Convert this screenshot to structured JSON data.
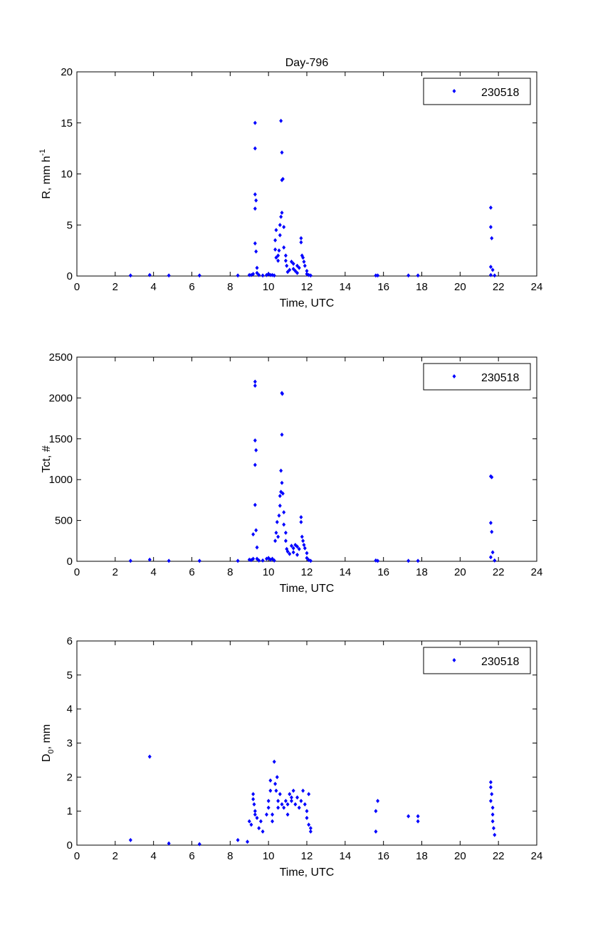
{
  "chart_data": [
    {
      "type": "scatter",
      "title": "Day-796",
      "xlabel": "Time, UTC",
      "ylabel": "R, mm h",
      "ylabel_sup": "-1",
      "xlim": [
        0,
        24
      ],
      "ylim": [
        0,
        20
      ],
      "xticks": [
        0,
        2,
        4,
        6,
        8,
        10,
        12,
        14,
        16,
        18,
        20,
        22,
        24
      ],
      "yticks": [
        0,
        5,
        10,
        15,
        20
      ],
      "legend": "230518",
      "legend_position": "top-right",
      "color": "#0000ff",
      "points": [
        [
          2.8,
          0.05
        ],
        [
          3.8,
          0.1
        ],
        [
          4.8,
          0.05
        ],
        [
          6.4,
          0.05
        ],
        [
          8.4,
          0.05
        ],
        [
          9.0,
          0.1
        ],
        [
          9.1,
          0.1
        ],
        [
          9.2,
          0.2
        ],
        [
          9.3,
          15
        ],
        [
          9.3,
          12.5
        ],
        [
          9.3,
          8
        ],
        [
          9.35,
          7.4
        ],
        [
          9.3,
          6.6
        ],
        [
          9.3,
          3.2
        ],
        [
          9.35,
          2.4
        ],
        [
          9.4,
          0.8
        ],
        [
          9.4,
          0.3
        ],
        [
          9.5,
          0.1
        ],
        [
          9.7,
          0.05
        ],
        [
          9.9,
          0.1
        ],
        [
          10.0,
          0.2
        ],
        [
          10.1,
          0.1
        ],
        [
          10.2,
          0.1
        ],
        [
          10.3,
          0.05
        ],
        [
          10.35,
          2.6
        ],
        [
          10.35,
          3.5
        ],
        [
          10.4,
          4.5
        ],
        [
          10.4,
          1.8
        ],
        [
          10.5,
          2.0
        ],
        [
          10.5,
          1.5
        ],
        [
          10.55,
          2.5
        ],
        [
          10.6,
          4.0
        ],
        [
          10.6,
          5.0
        ],
        [
          10.65,
          5.8
        ],
        [
          10.7,
          6.2
        ],
        [
          10.65,
          15.2
        ],
        [
          10.7,
          12.1
        ],
        [
          10.7,
          9.4
        ],
        [
          10.75,
          9.5
        ],
        [
          10.8,
          4.8
        ],
        [
          10.8,
          2.8
        ],
        [
          10.9,
          2.0
        ],
        [
          10.9,
          1.5
        ],
        [
          10.95,
          1.0
        ],
        [
          11.0,
          0.4
        ],
        [
          11.1,
          0.6
        ],
        [
          11.2,
          1.4
        ],
        [
          11.3,
          1.2
        ],
        [
          11.3,
          0.7
        ],
        [
          11.4,
          0.5
        ],
        [
          11.5,
          1.0
        ],
        [
          11.5,
          0.3
        ],
        [
          11.6,
          0.8
        ],
        [
          11.7,
          3.7
        ],
        [
          11.7,
          3.3
        ],
        [
          11.75,
          2.0
        ],
        [
          11.8,
          1.8
        ],
        [
          11.85,
          1.4
        ],
        [
          11.9,
          1.0
        ],
        [
          12.0,
          0.5
        ],
        [
          12.0,
          0.2
        ],
        [
          12.1,
          0.1
        ],
        [
          12.2,
          0.05
        ],
        [
          15.6,
          0.05
        ],
        [
          15.7,
          0.05
        ],
        [
          17.3,
          0.05
        ],
        [
          17.8,
          0.05
        ],
        [
          21.6,
          6.7
        ],
        [
          21.6,
          4.8
        ],
        [
          21.65,
          3.7
        ],
        [
          21.6,
          0.9
        ],
        [
          21.7,
          0.6
        ],
        [
          21.6,
          0.1
        ],
        [
          21.8,
          0.05
        ]
      ]
    },
    {
      "type": "scatter",
      "title": "",
      "xlabel": "Time, UTC",
      "ylabel": "Tct, #",
      "xlim": [
        0,
        24
      ],
      "ylim": [
        0,
        2500
      ],
      "xticks": [
        0,
        2,
        4,
        6,
        8,
        10,
        12,
        14,
        16,
        18,
        20,
        22,
        24
      ],
      "yticks": [
        0,
        500,
        1000,
        1500,
        2000,
        2500
      ],
      "legend": "230518",
      "legend_position": "top-right",
      "color": "#0000ff",
      "points": [
        [
          2.8,
          5
        ],
        [
          3.8,
          20
        ],
        [
          4.8,
          5
        ],
        [
          6.4,
          5
        ],
        [
          8.4,
          5
        ],
        [
          9.0,
          20
        ],
        [
          9.1,
          15
        ],
        [
          9.2,
          30
        ],
        [
          9.3,
          2200
        ],
        [
          9.3,
          2150
        ],
        [
          9.3,
          1480
        ],
        [
          9.35,
          1360
        ],
        [
          9.3,
          1180
        ],
        [
          9.3,
          690
        ],
        [
          9.35,
          380
        ],
        [
          9.2,
          330
        ],
        [
          9.4,
          170
        ],
        [
          9.4,
          30
        ],
        [
          9.5,
          10
        ],
        [
          9.7,
          10
        ],
        [
          9.9,
          30
        ],
        [
          10.0,
          40
        ],
        [
          10.1,
          20
        ],
        [
          10.2,
          30
        ],
        [
          10.3,
          10
        ],
        [
          10.35,
          250
        ],
        [
          10.4,
          350
        ],
        [
          10.45,
          480
        ],
        [
          10.5,
          300
        ],
        [
          10.55,
          560
        ],
        [
          10.6,
          680
        ],
        [
          10.6,
          800
        ],
        [
          10.65,
          850
        ],
        [
          10.7,
          960
        ],
        [
          10.65,
          1110
        ],
        [
          10.7,
          2060
        ],
        [
          10.72,
          2050
        ],
        [
          10.7,
          1550
        ],
        [
          10.75,
          830
        ],
        [
          10.8,
          600
        ],
        [
          10.8,
          450
        ],
        [
          10.9,
          350
        ],
        [
          10.9,
          250
        ],
        [
          10.95,
          150
        ],
        [
          11.0,
          120
        ],
        [
          11.1,
          90
        ],
        [
          11.2,
          190
        ],
        [
          11.3,
          160
        ],
        [
          11.3,
          110
        ],
        [
          11.4,
          200
        ],
        [
          11.5,
          180
        ],
        [
          11.5,
          80
        ],
        [
          11.6,
          150
        ],
        [
          11.7,
          540
        ],
        [
          11.7,
          480
        ],
        [
          11.75,
          300
        ],
        [
          11.8,
          250
        ],
        [
          11.85,
          200
        ],
        [
          11.9,
          160
        ],
        [
          12.0,
          100
        ],
        [
          12.0,
          40
        ],
        [
          12.1,
          15
        ],
        [
          12.2,
          5
        ],
        [
          15.6,
          10
        ],
        [
          15.7,
          5
        ],
        [
          17.3,
          5
        ],
        [
          17.8,
          5
        ],
        [
          21.6,
          1040
        ],
        [
          21.65,
          1030
        ],
        [
          21.6,
          470
        ],
        [
          21.65,
          360
        ],
        [
          21.7,
          110
        ],
        [
          21.6,
          50
        ],
        [
          21.8,
          10
        ]
      ]
    },
    {
      "type": "scatter",
      "title": "",
      "xlabel": "Time, UTC",
      "ylabel": "D",
      "ylabel_sub": "0",
      "ylabel_suffix": ", mm",
      "xlim": [
        0,
        24
      ],
      "ylim": [
        0,
        6
      ],
      "xticks": [
        0,
        2,
        4,
        6,
        8,
        10,
        12,
        14,
        16,
        18,
        20,
        22,
        24
      ],
      "yticks": [
        0,
        1,
        2,
        3,
        4,
        5,
        6
      ],
      "legend": "230518",
      "legend_position": "top-right",
      "color": "#0000ff",
      "points": [
        [
          2.8,
          0.15
        ],
        [
          3.8,
          2.6
        ],
        [
          4.8,
          0.05
        ],
        [
          6.4,
          0.03
        ],
        [
          8.4,
          0.15
        ],
        [
          8.9,
          0.1
        ],
        [
          9.0,
          0.7
        ],
        [
          9.1,
          0.6
        ],
        [
          9.2,
          1.5
        ],
        [
          9.2,
          1.35
        ],
        [
          9.25,
          1.2
        ],
        [
          9.3,
          1.0
        ],
        [
          9.3,
          0.9
        ],
        [
          9.4,
          0.8
        ],
        [
          9.5,
          0.5
        ],
        [
          9.6,
          0.7
        ],
        [
          9.7,
          0.4
        ],
        [
          9.9,
          0.9
        ],
        [
          10.0,
          1.3
        ],
        [
          10.0,
          1.1
        ],
        [
          10.1,
          1.9
        ],
        [
          10.1,
          1.6
        ],
        [
          10.2,
          0.9
        ],
        [
          10.2,
          0.7
        ],
        [
          10.3,
          2.45
        ],
        [
          10.35,
          1.8
        ],
        [
          10.4,
          1.6
        ],
        [
          10.45,
          2.0
        ],
        [
          10.5,
          1.3
        ],
        [
          10.5,
          1.1
        ],
        [
          10.6,
          1.5
        ],
        [
          10.7,
          1.2
        ],
        [
          10.8,
          1.1
        ],
        [
          10.9,
          1.3
        ],
        [
          11.0,
          1.2
        ],
        [
          11.0,
          0.9
        ],
        [
          11.1,
          1.5
        ],
        [
          11.2,
          1.4
        ],
        [
          11.2,
          1.3
        ],
        [
          11.3,
          1.6
        ],
        [
          11.4,
          1.2
        ],
        [
          11.5,
          1.4
        ],
        [
          11.6,
          1.1
        ],
        [
          11.7,
          1.3
        ],
        [
          11.8,
          1.6
        ],
        [
          11.9,
          1.2
        ],
        [
          12.0,
          1.0
        ],
        [
          12.0,
          0.8
        ],
        [
          12.1,
          1.5
        ],
        [
          12.1,
          0.6
        ],
        [
          12.2,
          0.5
        ],
        [
          12.2,
          0.4
        ],
        [
          15.6,
          0.4
        ],
        [
          15.6,
          1.0
        ],
        [
          15.7,
          1.3
        ],
        [
          17.3,
          0.85
        ],
        [
          17.8,
          0.85
        ],
        [
          17.8,
          0.7
        ],
        [
          21.6,
          1.85
        ],
        [
          21.6,
          1.7
        ],
        [
          21.65,
          1.5
        ],
        [
          21.6,
          1.3
        ],
        [
          21.7,
          1.1
        ],
        [
          21.7,
          0.9
        ],
        [
          21.7,
          0.7
        ],
        [
          21.75,
          0.5
        ],
        [
          21.8,
          0.3
        ]
      ]
    }
  ]
}
